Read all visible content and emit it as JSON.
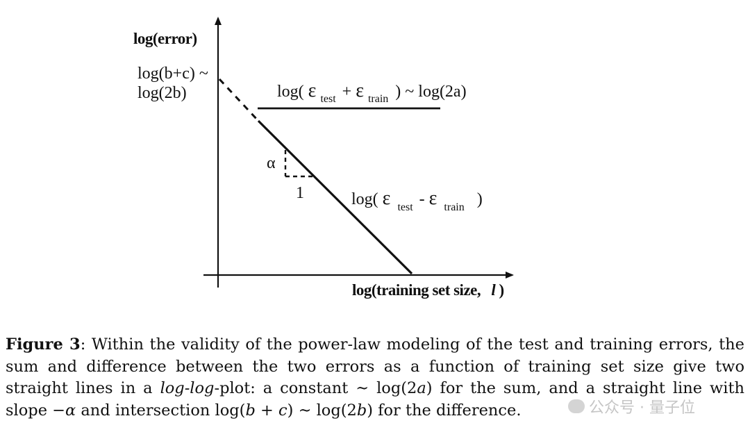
{
  "figure": {
    "y_axis_title": "log(error)",
    "x_axis_title": "log(training set size,",
    "x_axis_symbol": "l",
    "close_paren": ")",
    "intercept_label_line1": "log(b+c) ~",
    "intercept_label_line2": "log(2b)",
    "sum_label": {
      "prefix": "log(",
      "eps1": "ε",
      "sub1": "test",
      "plus": "+",
      "eps2": "ε",
      "sub2": "train",
      "suffix": ") ~ log(2a)"
    },
    "diff_label": {
      "prefix": "log(",
      "eps1": "ε",
      "sub1": "test",
      "minus": "-",
      "eps2": "ε",
      "sub2": "train",
      "suffix": ")"
    },
    "slope_rise_label": "α",
    "slope_run_label": "1"
  },
  "caption": {
    "figure_label": "Figure 3",
    "text_1": ": Within the validity of the power-law modeling of the test and training errors, the sum and difference between the two errors as a function of training set size give two straight lines in a ",
    "italic_term": "log-log",
    "text_2": "-plot: a constant ∼ log(2",
    "var_a": "a",
    "text_3": ") for the sum, and a straight line with slope −",
    "var_alpha": "α",
    "text_4": " and intersection log(",
    "var_b1": "b",
    "text_5": " + ",
    "var_c": "c",
    "text_6": ") ∼ log(2",
    "var_b2": "b",
    "text_7": ") for the difference."
  },
  "watermark": {
    "text": "公众号 · 量子位"
  }
}
